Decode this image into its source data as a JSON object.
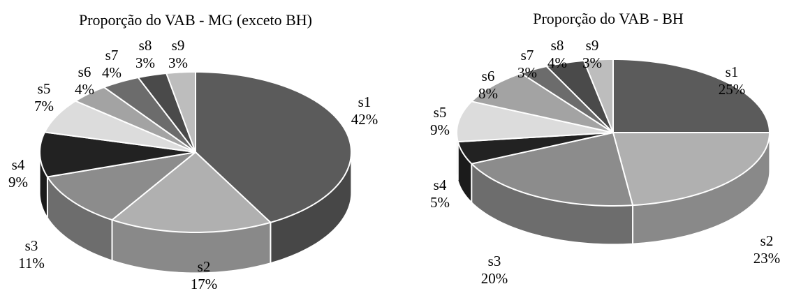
{
  "chart_data": [
    {
      "type": "pie",
      "title": "Proporção do VAB - MG (exceto BH)",
      "categories": [
        "s1",
        "s2",
        "s3",
        "s4",
        "s5",
        "s6",
        "s7",
        "s8",
        "s9"
      ],
      "values": [
        42,
        17,
        11,
        9,
        7,
        4,
        4,
        3,
        3
      ],
      "value_labels": [
        "42%",
        "17%",
        "11%",
        "9%",
        "7%",
        "4%",
        "4%",
        "3%",
        "3%"
      ],
      "colors": [
        "#5b5b5b",
        "#b0b0b0",
        "#8c8c8c",
        "#222222",
        "#dcdcdc",
        "#a3a3a3",
        "#6c6c6c",
        "#4a4a4a",
        "#bdbdbd"
      ],
      "style": "3d"
    },
    {
      "type": "pie",
      "title": "Proporção do VAB - BH",
      "categories": [
        "s1",
        "s2",
        "s3",
        "s4",
        "s5",
        "s6",
        "s7",
        "s8",
        "s9"
      ],
      "values": [
        25,
        23,
        20,
        5,
        9,
        8,
        3,
        4,
        3
      ],
      "value_labels": [
        "25%",
        "23%",
        "20%",
        "5%",
        "9%",
        "8%",
        "3%",
        "4%",
        "3%"
      ],
      "colors": [
        "#5b5b5b",
        "#b0b0b0",
        "#8c8c8c",
        "#222222",
        "#dcdcdc",
        "#a3a3a3",
        "#6c6c6c",
        "#4a4a4a",
        "#bdbdbd"
      ],
      "style": "3d"
    }
  ]
}
